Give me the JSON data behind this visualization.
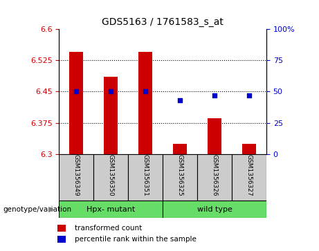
{
  "title": "GDS5163 / 1761583_s_at",
  "samples": [
    "GSM1356349",
    "GSM1356350",
    "GSM1356351",
    "GSM1356325",
    "GSM1356326",
    "GSM1356327"
  ],
  "bar_values": [
    6.545,
    6.485,
    6.545,
    6.325,
    6.387,
    6.325
  ],
  "percentile_values": [
    50,
    50,
    50,
    43,
    47,
    47
  ],
  "ylim_left": [
    6.3,
    6.6
  ],
  "ylim_right": [
    0,
    100
  ],
  "yticks_left": [
    6.3,
    6.375,
    6.45,
    6.525,
    6.6
  ],
  "yticks_right": [
    0,
    25,
    50,
    75,
    100
  ],
  "bar_color": "#cc0000",
  "dot_color": "#0000cc",
  "bar_width": 0.4,
  "group1_label": "Hpx- mutant",
  "group2_label": "wild type",
  "group1_color": "#66dd66",
  "group2_color": "#66dd66",
  "group_row_label": "genotype/variation",
  "legend_bar_label": "transformed count",
  "legend_dot_label": "percentile rank within the sample",
  "tick_color_left": "#cc0000",
  "tick_color_right": "#0000cc",
  "bg_color": "#ffffff",
  "plot_bg": "#ffffff",
  "sample_bg": "#cccccc"
}
